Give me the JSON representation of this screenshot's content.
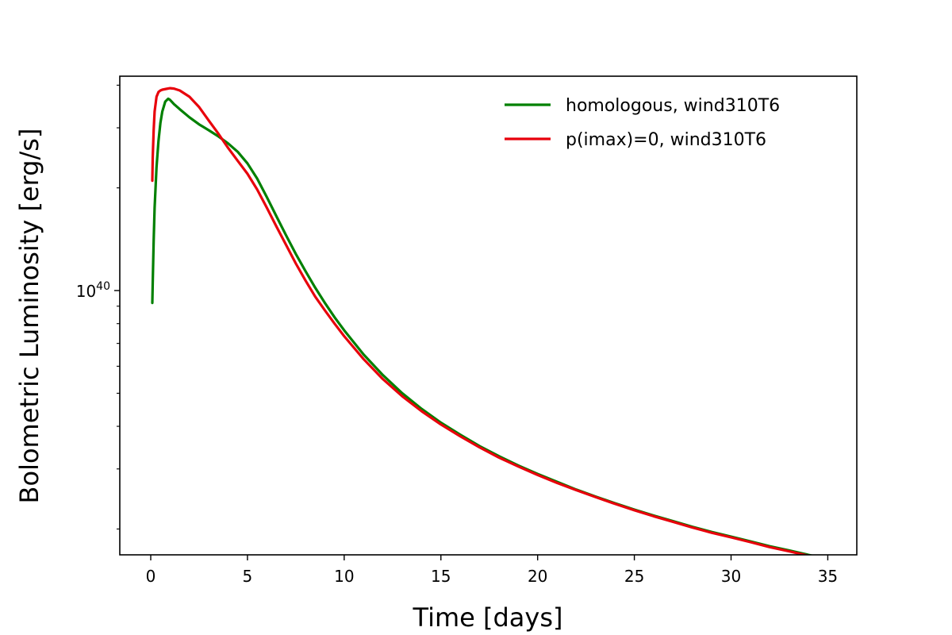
{
  "chart_data": {
    "type": "line",
    "title": "",
    "xlabel": "Time [days]",
    "ylabel": "Bolometric Luminosity [erg/s]",
    "yscale": "log",
    "xlim": [
      -1.6,
      36.5
    ],
    "ylim": [
      1.68e+39,
      4.25e+40
    ],
    "xticks": [
      0,
      5,
      10,
      15,
      20,
      25,
      30,
      35
    ],
    "yticks_major": [
      {
        "value": 1e+40,
        "base": "10",
        "exp": "40"
      }
    ],
    "yticks_minor": [
      2e+39,
      3e+39,
      4e+39,
      5e+39,
      6e+39,
      7e+39,
      8e+39,
      9e+39,
      2e+40,
      3e+40,
      4e+40
    ],
    "grid": false,
    "legend": "top-right",
    "series": [
      {
        "name": "homologous, wind310T6",
        "color": "#008000",
        "x": [
          0.08,
          0.1,
          0.15,
          0.2,
          0.3,
          0.4,
          0.5,
          0.6,
          0.75,
          0.9,
          1.0,
          1.2,
          1.5,
          2.0,
          2.5,
          3.0,
          3.5,
          4.0,
          4.5,
          5.0,
          5.5,
          6.0,
          6.5,
          7.0,
          7.5,
          8.0,
          8.5,
          9.0,
          9.5,
          10.0,
          11.0,
          12.0,
          13.0,
          14.0,
          15.0,
          16.0,
          17.0,
          18.0,
          19.0,
          20.0,
          21.0,
          22.0,
          23.0,
          24.0,
          25.0,
          26.0,
          27.0,
          28.0,
          29.0,
          30.0,
          31.0,
          32.0,
          33.0,
          34.0,
          34.8
        ],
        "y": [
          9.2e+39,
          1.05e+40,
          1.4e+40,
          1.75e+40,
          2.3e+40,
          2.75e+40,
          3.1e+40,
          3.35e+40,
          3.58e+40,
          3.65e+40,
          3.62e+40,
          3.52e+40,
          3.4e+40,
          3.22e+40,
          3.07e+40,
          2.95e+40,
          2.83e+40,
          2.7e+40,
          2.55e+40,
          2.36e+40,
          2.13e+40,
          1.88e+40,
          1.65e+40,
          1.45e+40,
          1.28e+40,
          1.14e+40,
          1.02e+40,
          9.2e+39,
          8.35e+39,
          7.65e+39,
          6.5e+39,
          5.65e+39,
          5e+39,
          4.5e+39,
          4.1e+39,
          3.78e+39,
          3.5e+39,
          3.27e+39,
          3.07e+39,
          2.9e+39,
          2.75e+39,
          2.61e+39,
          2.49e+39,
          2.38e+39,
          2.28e+39,
          2.19e+39,
          2.11e+39,
          2.03e+39,
          1.96e+39,
          1.9e+39,
          1.84e+39,
          1.78e+39,
          1.73e+39,
          1.68e+39,
          1.64e+39
        ]
      },
      {
        "name": "p(imax)=0, wind310T6",
        "color": "#e8000b",
        "x": [
          0.08,
          0.1,
          0.15,
          0.2,
          0.3,
          0.4,
          0.5,
          0.6,
          0.8,
          1.0,
          1.2,
          1.5,
          2.0,
          2.5,
          3.0,
          3.5,
          4.0,
          4.5,
          5.0,
          5.5,
          6.0,
          6.5,
          7.0,
          7.5,
          8.0,
          8.5,
          9.0,
          9.5,
          10.0,
          11.0,
          12.0,
          13.0,
          14.0,
          15.0,
          16.0,
          17.0,
          18.0,
          19.0,
          20.0,
          21.0,
          22.0,
          23.0,
          24.0,
          25.0,
          26.0,
          27.0,
          28.0,
          29.0,
          30.0,
          31.0,
          32.0,
          33.0,
          34.0,
          34.8
        ],
        "y": [
          2.1e+40,
          2.45e+40,
          2.95e+40,
          3.35e+40,
          3.7e+40,
          3.82e+40,
          3.86e+40,
          3.88e+40,
          3.9e+40,
          3.92e+40,
          3.91e+40,
          3.86e+40,
          3.7e+40,
          3.45e+40,
          3.15e+40,
          2.88e+40,
          2.62e+40,
          2.4e+40,
          2.2e+40,
          1.98e+40,
          1.75e+40,
          1.54e+40,
          1.36e+40,
          1.2e+40,
          1.07e+40,
          9.6e+39,
          8.75e+39,
          8e+39,
          7.35e+39,
          6.3e+39,
          5.5e+39,
          4.9e+39,
          4.43e+39,
          4.05e+39,
          3.74e+39,
          3.47e+39,
          3.24e+39,
          3.05e+39,
          2.88e+39,
          2.73e+39,
          2.6e+39,
          2.48e+39,
          2.37e+39,
          2.27e+39,
          2.18e+39,
          2.1e+39,
          2.02e+39,
          1.95e+39,
          1.89e+39,
          1.83e+39,
          1.77e+39,
          1.72e+39,
          1.67e+39,
          1.64e+39
        ]
      }
    ]
  }
}
